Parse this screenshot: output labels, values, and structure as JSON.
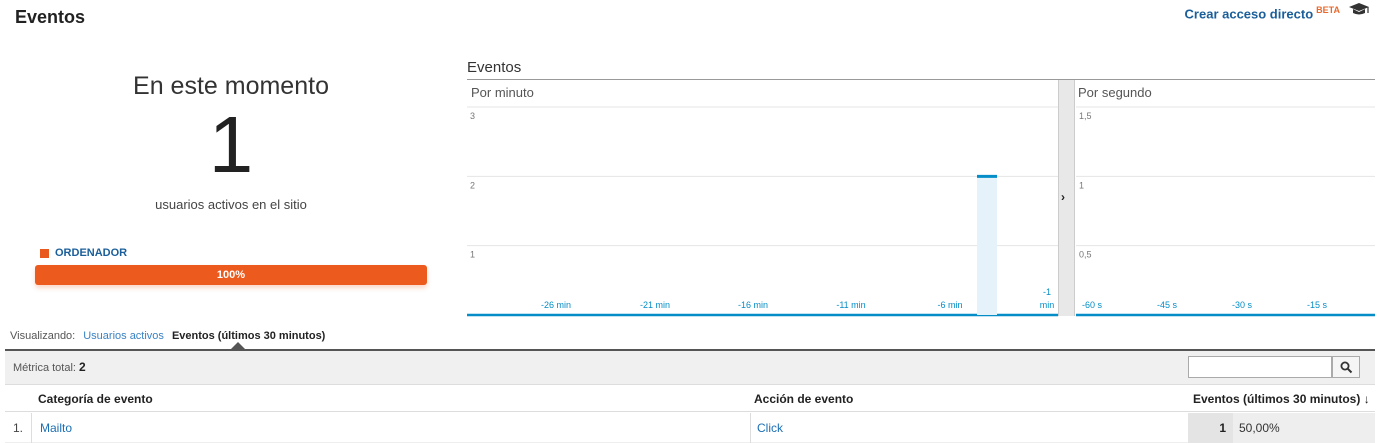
{
  "header": {
    "title": "Eventos",
    "shortcut_label": "Crear acceso directo",
    "beta_badge": "BETA",
    "help_icon": "graduation-cap-icon"
  },
  "summary": {
    "heading": "En este momento",
    "active_users": "1",
    "caption": "usuarios activos en el sitio",
    "device_legend": "ORDENADOR",
    "device_percent_label": "100%",
    "device_share": 1.0
  },
  "chart_data": [
    {
      "type": "bar",
      "title": "Eventos",
      "subtitle": "Por minuto",
      "y_ticks": [
        "1",
        "2",
        "3"
      ],
      "x_ticks": [
        "-26 min",
        "-21 min",
        "-16 min",
        "-11 min",
        "-6 min",
        "-1 min"
      ],
      "ylim": [
        0,
        3
      ],
      "categories": [
        "-1 min"
      ],
      "values": [
        2
      ],
      "grid": true,
      "color": "#058dc7"
    },
    {
      "type": "bar",
      "subtitle": "Por segundo",
      "y_ticks": [
        "0,5",
        "1",
        "1,5"
      ],
      "x_ticks": [
        "-60 s",
        "-45 s",
        "-30 s",
        "-15 s"
      ],
      "ylim": [
        0,
        1.5
      ],
      "categories": [],
      "values": [],
      "grid": true,
      "color": "#058dc7"
    }
  ],
  "viewing": {
    "label": "Visualizando:",
    "link": "Usuarios activos",
    "active": "Eventos (últimos 30 minutos)"
  },
  "table": {
    "metric_total_label": "Métrica total:",
    "metric_total_value": "2",
    "search_placeholder": "",
    "columns": {
      "category": "Categoría de evento",
      "action": "Acción de evento",
      "events": "Eventos (últimos 30 minutos)"
    },
    "rows": [
      {
        "num": "1.",
        "category": "Mailto",
        "action": "Click",
        "events": "1",
        "percent": "50,00%"
      }
    ]
  },
  "colors": {
    "accent_orange": "#ec5a1e",
    "link_blue": "#1a5e9a",
    "chart_blue": "#058dc7"
  }
}
